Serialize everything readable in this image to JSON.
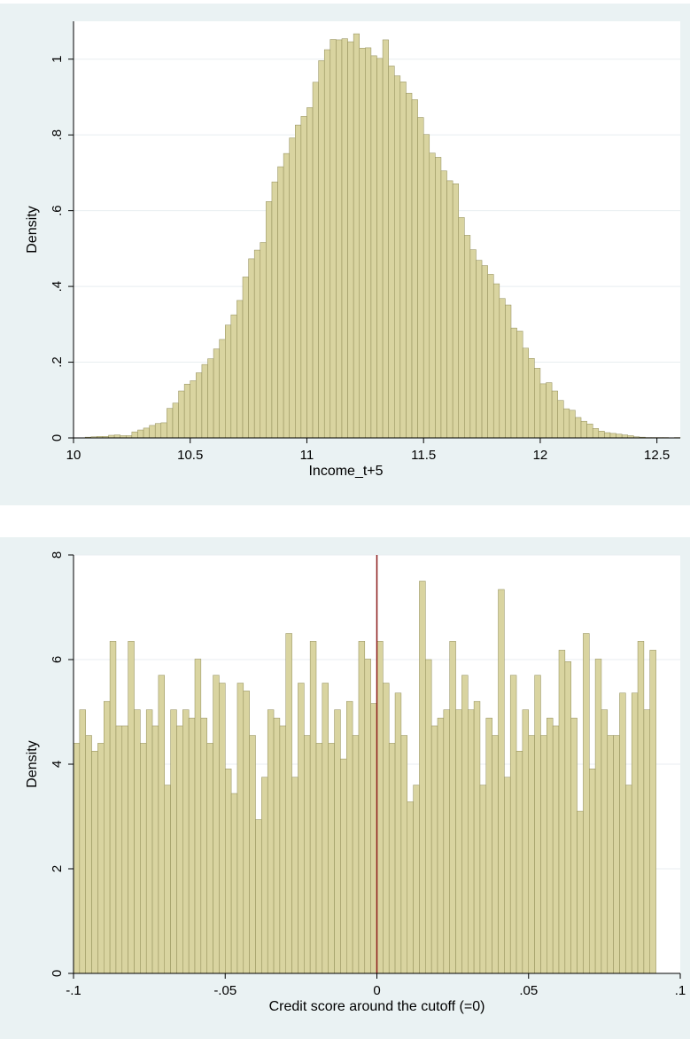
{
  "chart_data": [
    {
      "type": "bar",
      "subtype": "histogram",
      "xlabel": "Income_t+5",
      "ylabel": "Density",
      "xlim": [
        10,
        12.6
      ],
      "ylim": [
        0,
        1.1
      ],
      "xticks": [
        10,
        10.5,
        11,
        11.5,
        12,
        12.5
      ],
      "xtick_labels": [
        "10",
        "10.5",
        "11",
        "11.5",
        "12",
        "12.5"
      ],
      "yticks": [
        0,
        0.2,
        0.4,
        0.6,
        0.8,
        1
      ],
      "ytick_labels": [
        "0",
        ".2",
        ".4",
        ".6",
        ".8",
        "1"
      ],
      "grid": "horizontal",
      "bin_start": 10.05,
      "bin_width": 0.025,
      "values": [
        0.002,
        0.003,
        0.004,
        0.004,
        0.007,
        0.008,
        0.006,
        0.006,
        0.016,
        0.021,
        0.026,
        0.033,
        0.038,
        0.04,
        0.078,
        0.092,
        0.124,
        0.142,
        0.151,
        0.172,
        0.194,
        0.209,
        0.235,
        0.26,
        0.298,
        0.325,
        0.363,
        0.425,
        0.473,
        0.496,
        0.516,
        0.624,
        0.676,
        0.716,
        0.751,
        0.792,
        0.826,
        0.849,
        0.872,
        0.939,
        0.996,
        1.025,
        1.052,
        1.051,
        1.054,
        1.046,
        1.067,
        1.029,
        1.03,
        1.009,
        1.002,
        1.051,
        0.982,
        0.956,
        0.94,
        0.91,
        0.893,
        0.846,
        0.801,
        0.752,
        0.741,
        0.705,
        0.679,
        0.671,
        0.582,
        0.535,
        0.497,
        0.469,
        0.455,
        0.432,
        0.407,
        0.368,
        0.351,
        0.29,
        0.282,
        0.237,
        0.21,
        0.184,
        0.143,
        0.146,
        0.124,
        0.099,
        0.077,
        0.073,
        0.054,
        0.044,
        0.037,
        0.025,
        0.018,
        0.014,
        0.012,
        0.01,
        0.008,
        0.006,
        0.003,
        0.002,
        0.001,
        0.001,
        0.001,
        0.001,
        0.0,
        0.001,
        0.0,
        0.0
      ]
    },
    {
      "type": "bar",
      "subtype": "histogram",
      "xlabel": "Credit score around the cutoff (=0)",
      "ylabel": "Density",
      "xlim": [
        -0.1,
        0.1
      ],
      "ylim": [
        0,
        8
      ],
      "xticks": [
        -0.1,
        -0.05,
        0,
        0.05,
        0.1
      ],
      "xtick_labels": [
        "-.1",
        "-.05",
        "0",
        ".05",
        ".1"
      ],
      "yticks": [
        0,
        2,
        4,
        6,
        8
      ],
      "ytick_labels": [
        "0",
        "2",
        "4",
        "6",
        "8"
      ],
      "grid": "horizontal",
      "reference_line": {
        "x": 0,
        "color": "#8b1a1a"
      },
      "bin_start": -0.1,
      "bin_width": 0.002,
      "values": [
        4.4,
        5.04,
        4.55,
        4.25,
        4.4,
        5.2,
        6.35,
        4.73,
        4.73,
        6.35,
        5.04,
        4.4,
        5.04,
        4.73,
        5.7,
        3.6,
        5.04,
        4.73,
        5.04,
        4.88,
        6.01,
        4.88,
        4.4,
        5.7,
        5.55,
        3.91,
        3.44,
        5.55,
        5.4,
        4.55,
        2.94,
        3.75,
        5.04,
        4.88,
        4.73,
        6.5,
        3.75,
        5.55,
        4.55,
        6.35,
        4.4,
        5.55,
        4.4,
        5.04,
        4.1,
        5.2,
        4.55,
        6.35,
        6.01,
        5.16,
        6.35,
        5.55,
        4.4,
        5.36,
        4.55,
        3.28,
        3.6,
        7.5,
        6.0,
        4.73,
        4.88,
        5.04,
        6.35,
        5.04,
        5.7,
        5.04,
        5.2,
        3.6,
        4.88,
        4.55,
        7.34,
        3.75,
        5.7,
        4.25,
        5.04,
        4.55,
        5.7,
        4.55,
        4.88,
        4.73,
        6.18,
        5.96,
        4.88,
        3.1,
        6.5,
        3.91,
        6.01,
        5.04,
        4.55,
        4.55,
        5.36,
        3.6,
        5.36,
        6.35,
        5.04,
        6.18
      ]
    }
  ]
}
